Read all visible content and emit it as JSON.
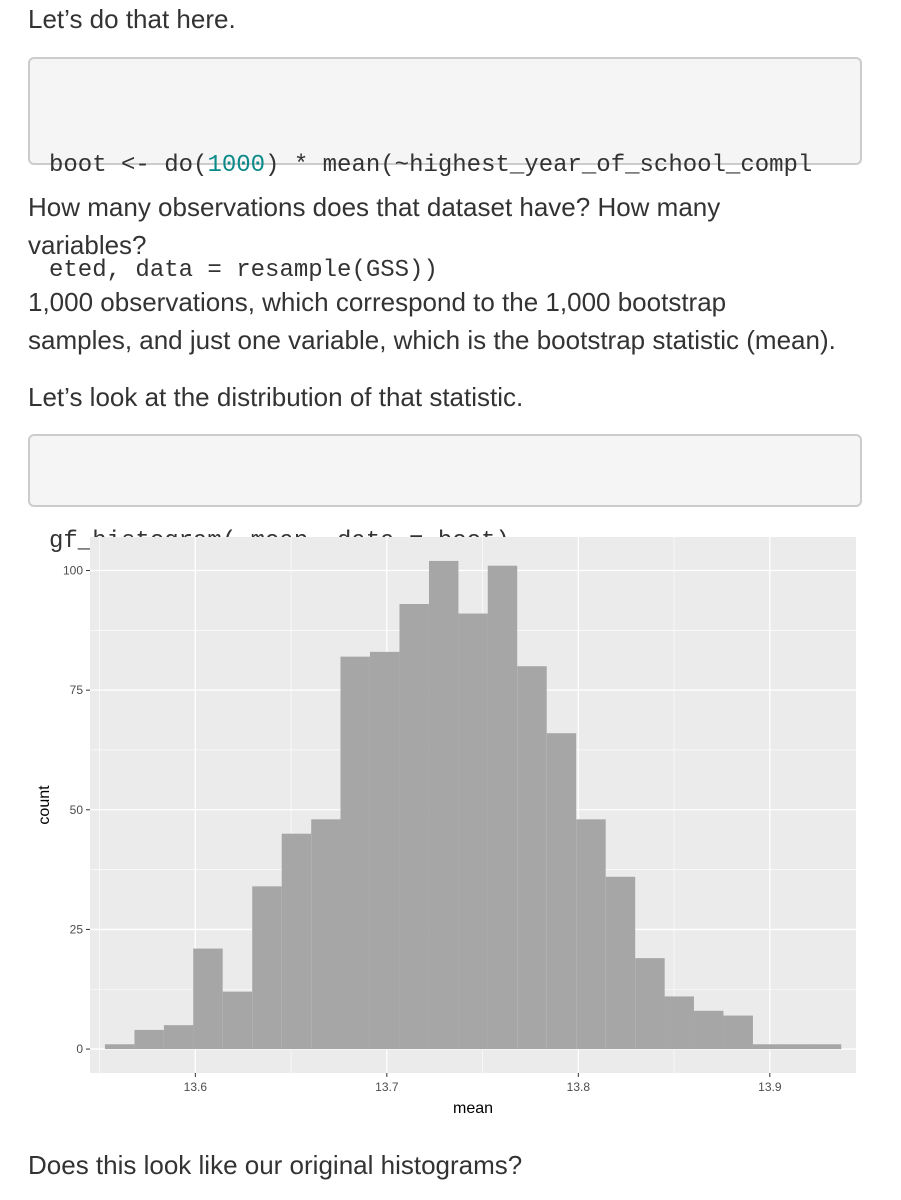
{
  "paragraphs": {
    "intro": "Let’s do that here.",
    "q_line1": "How many observations does that dataset have? How many",
    "q_line2": "variables?",
    "a_line1": "1,000 observations, which correspond to the 1,000 bootstrap",
    "a_line2": "samples, and just one variable, which is the bootstrap statistic (mean).",
    "look": "Let’s look at the distribution of that statistic.",
    "closing": "Does this look like our original histograms?"
  },
  "code1": {
    "l1_pre": "boot <- do(",
    "l1_num": "1000",
    "l1_post": ") * mean(~highest_year_of_school_compl",
    "l2": "eted, data = resample(GSS))"
  },
  "code2": {
    "l1": "gf_histogram(~mean, data = boot)"
  },
  "colors": {
    "panel_bg": "#ebebeb",
    "grid": "#ffffff",
    "bar_fill": "#a6a6a6",
    "number_literal": "#0b8a8a"
  },
  "chart_data": {
    "type": "bar",
    "xlabel": "mean",
    "ylabel": "count",
    "xlim": [
      13.545,
      13.945
    ],
    "ylim": [
      -5,
      107
    ],
    "x_ticks": [
      13.6,
      13.7,
      13.8,
      13.9
    ],
    "x_tick_labels": [
      "13.6",
      "13.7",
      "13.8",
      "13.9"
    ],
    "y_ticks": [
      0,
      25,
      50,
      75,
      100
    ],
    "y_tick_labels": [
      "0",
      "25",
      "50",
      "75",
      "100"
    ],
    "bin_width": 0.01538,
    "bin_centers": [
      13.5605,
      13.5759,
      13.5913,
      13.6066,
      13.622,
      13.6374,
      13.6528,
      13.6682,
      13.6835,
      13.6989,
      13.7143,
      13.7297,
      13.7451,
      13.7604,
      13.7758,
      13.7912,
      13.8066,
      13.822,
      13.8374,
      13.8527,
      13.8681,
      13.8835,
      13.8989,
      13.9143,
      13.9296
    ],
    "counts": [
      1,
      4,
      5,
      21,
      12,
      34,
      45,
      48,
      82,
      83,
      93,
      102,
      91,
      101,
      80,
      66,
      48,
      36,
      19,
      11,
      8,
      7,
      1,
      1,
      1
    ],
    "grid": true,
    "legend": "none"
  }
}
